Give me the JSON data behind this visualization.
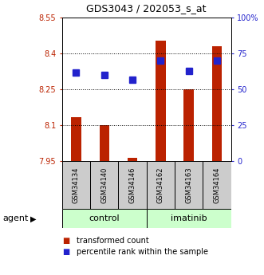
{
  "title": "GDS3043 / 202053_s_at",
  "categories": [
    "GSM34134",
    "GSM34140",
    "GSM34146",
    "GSM34162",
    "GSM34163",
    "GSM34164"
  ],
  "red_values": [
    8.135,
    8.101,
    7.962,
    8.453,
    8.252,
    8.43
  ],
  "blue_values": [
    62,
    60,
    57,
    70,
    63,
    70
  ],
  "ylim_left": [
    7.95,
    8.55
  ],
  "ylim_right": [
    0,
    100
  ],
  "yticks_left": [
    7.95,
    8.1,
    8.25,
    8.4,
    8.55
  ],
  "yticks_right": [
    0,
    25,
    50,
    75,
    100
  ],
  "ytick_labels_left": [
    "7.95",
    "8.1",
    "8.25",
    "8.4",
    "8.55"
  ],
  "ytick_labels_right": [
    "0",
    "25",
    "50",
    "75",
    "100%"
  ],
  "bar_bottom": 7.95,
  "bar_width": 0.35,
  "red_color": "#bb2200",
  "blue_color": "#2222cc",
  "control_label": "control",
  "imatinib_label": "imatinib",
  "agent_label": "agent",
  "legend_red": "transformed count",
  "legend_blue": "percentile rank within the sample",
  "light_green": "#ccffcc",
  "gray_bg": "#cccccc",
  "blue_marker_size": 6,
  "title_fontsize": 9,
  "tick_fontsize": 7,
  "label_fontsize": 6,
  "agent_fontsize": 8,
  "legend_fontsize": 7
}
